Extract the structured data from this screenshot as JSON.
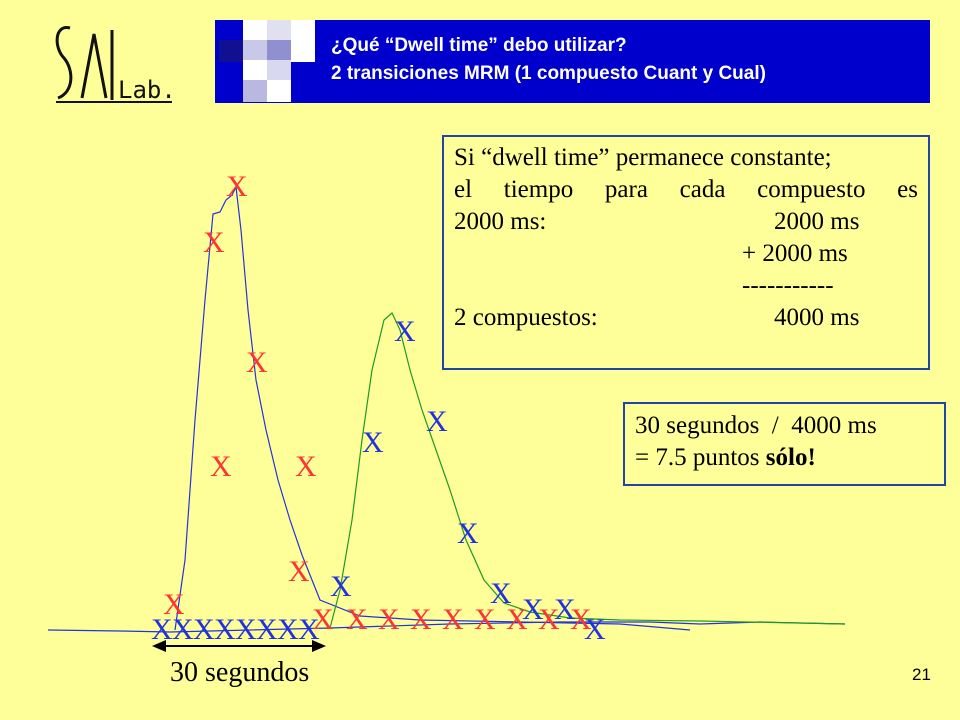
{
  "logo": {
    "text": "Lab."
  },
  "header": {
    "title_line1": "¿Qué “Dwell time” debo utilizar?",
    "title_line2": "2 transiciones MRM (1 compuesto Cuant y Cual)"
  },
  "info_box": {
    "line1": "Si “dwell time” permanece constante;",
    "line2": "el tiempo para cada compuesto es",
    "line3_label": "2000 ms:",
    "line3_value": "2000 ms",
    "line4": "+ 2000 ms",
    "line5": "-----------",
    "line6_label": "2 compuestos:",
    "line6_value": "4000 ms"
  },
  "calc_box": {
    "line1": "30 segundos  /  4000 ms",
    "line2_prefix": "= 7.5 puntos ",
    "line2_bold": "sólo!"
  },
  "marker_symbol": "X",
  "time_span_label": "30 segundos",
  "page_number": "21",
  "colors": {
    "background": "#ffff99",
    "header": "#0000cc",
    "red_series": "#ff3333",
    "blue_series": "#2233dd",
    "green_trace": "#229922",
    "box_border": "#2244aa"
  }
}
